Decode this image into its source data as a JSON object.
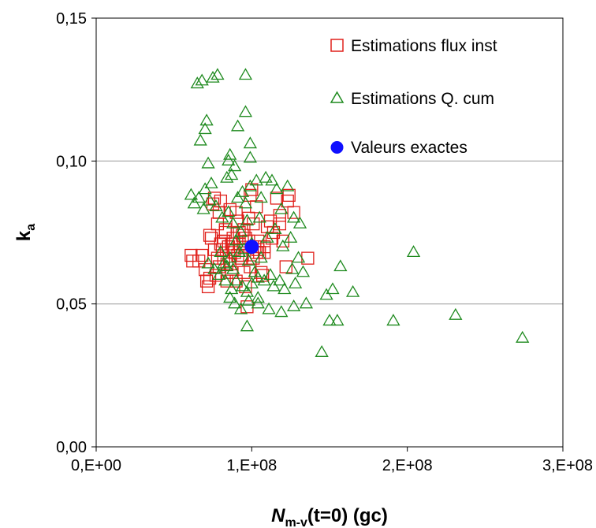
{
  "colors": {
    "series_flux": "#e0201b",
    "series_qcum": "#1e8a1e",
    "series_exact": "#1010ff",
    "gridline": "#a6a6a6",
    "axis": "#000000"
  },
  "chart_data": {
    "type": "scatter",
    "xlabel": {
      "main": "N",
      "sub": "m-v",
      "rest": "(t=0) (gc)"
    },
    "ylabel": {
      "main": "k",
      "sub": "a"
    },
    "xlim": [
      0,
      300000000
    ],
    "ylim": [
      0,
      0.15
    ],
    "x_ticks": [
      {
        "value": 0,
        "label": "0,E+00"
      },
      {
        "value": 100000000,
        "label": "1,E+08"
      },
      {
        "value": 200000000,
        "label": "2,E+08"
      },
      {
        "value": 300000000,
        "label": "3,E+08"
      }
    ],
    "y_ticks": [
      {
        "value": 0,
        "label": "0,00"
      },
      {
        "value": 0.05,
        "label": "0,05"
      },
      {
        "value": 0.1,
        "label": "0,10"
      },
      {
        "value": 0.15,
        "label": "0,15"
      }
    ],
    "grid": {
      "horizontal": true,
      "vertical": false
    },
    "legend_position": "top-right",
    "series": [
      {
        "name": "Estimations flux inst",
        "marker": "square-open",
        "x": [
          61000000,
          66000000,
          68000000,
          71000000,
          72000000,
          74000000,
          75000000,
          76000000,
          77000000,
          78000000,
          79000000,
          80000000,
          81000000,
          82000000,
          83000000,
          84000000,
          85000000,
          86000000,
          87000000,
          88000000,
          89000000,
          90000000,
          91000000,
          92000000,
          93000000,
          94000000,
          95000000,
          96000000,
          97000000,
          98000000,
          99000000,
          100000000,
          101000000,
          102000000,
          103000000,
          104000000,
          105000000,
          106000000,
          107000000,
          108000000,
          110000000,
          112000000,
          114000000,
          116000000,
          118000000,
          120000000,
          122000000,
          124000000,
          127000000,
          136000000,
          62000000,
          70000000,
          73000000,
          78000000,
          80000000,
          82000000,
          84000000,
          86000000,
          88000000,
          90000000,
          92000000,
          94000000,
          96000000,
          99000000,
          101000000,
          104000000,
          108000000,
          113000000,
          118000000,
          123000000,
          76000000,
          79000000,
          83000000,
          87000000,
          91000000,
          95000000,
          98000000,
          103000000,
          73000000,
          85000000
        ],
        "y": [
          0.067,
          0.065,
          0.067,
          0.058,
          0.056,
          0.073,
          0.085,
          0.087,
          0.06,
          0.078,
          0.063,
          0.071,
          0.069,
          0.066,
          0.075,
          0.058,
          0.07,
          0.064,
          0.061,
          0.073,
          0.068,
          0.082,
          0.079,
          0.071,
          0.066,
          0.074,
          0.061,
          0.056,
          0.049,
          0.072,
          0.088,
          0.09,
          0.066,
          0.07,
          0.084,
          0.069,
          0.068,
          0.061,
          0.06,
          0.07,
          0.077,
          0.079,
          0.075,
          0.087,
          0.078,
          0.072,
          0.063,
          0.088,
          0.082,
          0.066,
          0.065,
          0.062,
          0.059,
          0.066,
          0.086,
          0.072,
          0.064,
          0.083,
          0.069,
          0.058,
          0.075,
          0.067,
          0.073,
          0.063,
          0.078,
          0.072,
          0.068,
          0.073,
          0.081,
          0.086,
          0.069,
          0.082,
          0.076,
          0.071,
          0.067,
          0.076,
          0.08,
          0.068,
          0.074,
          0.07
        ]
      },
      {
        "name": "Estimations Q. cum",
        "marker": "triangle-open",
        "x": [
          65000000,
          68000000,
          71000000,
          75000000,
          78000000,
          96000000,
          67000000,
          70000000,
          72000000,
          66000000,
          96000000,
          91000000,
          99000000,
          86000000,
          99000000,
          70000000,
          74000000,
          84000000,
          85000000,
          87000000,
          89000000,
          91000000,
          94000000,
          96000000,
          99000000,
          103000000,
          106000000,
          109000000,
          113000000,
          116000000,
          119000000,
          123000000,
          127000000,
          131000000,
          61000000,
          63000000,
          69000000,
          73000000,
          77000000,
          81000000,
          85000000,
          88000000,
          90000000,
          93000000,
          97000000,
          100000000,
          105000000,
          110000000,
          115000000,
          120000000,
          125000000,
          130000000,
          80000000,
          82000000,
          84000000,
          86000000,
          88000000,
          92000000,
          95000000,
          98000000,
          102000000,
          106000000,
          112000000,
          118000000,
          126000000,
          133000000,
          87000000,
          90000000,
          94000000,
          97000000,
          100000000,
          104000000,
          108000000,
          114000000,
          121000000,
          128000000,
          135000000,
          86000000,
          89000000,
          93000000,
          98000000,
          104000000,
          111000000,
          119000000,
          127000000,
          97000000,
          104000000,
          145000000,
          148000000,
          150000000,
          152000000,
          155000000,
          157000000,
          165000000,
          191000000,
          204000000,
          231000000,
          274000000,
          72000000,
          76000000,
          79000000,
          83000000
        ],
        "y": [
          0.127,
          0.128,
          0.114,
          0.129,
          0.13,
          0.13,
          0.107,
          0.111,
          0.099,
          0.087,
          0.117,
          0.112,
          0.106,
          0.102,
          0.101,
          0.09,
          0.092,
          0.094,
          0.1,
          0.095,
          0.098,
          0.087,
          0.089,
          0.085,
          0.091,
          0.093,
          0.087,
          0.094,
          0.093,
          0.09,
          0.083,
          0.091,
          0.08,
          0.078,
          0.088,
          0.085,
          0.083,
          0.086,
          0.084,
          0.08,
          0.082,
          0.078,
          0.072,
          0.075,
          0.079,
          0.071,
          0.08,
          0.073,
          0.076,
          0.07,
          0.073,
          0.066,
          0.068,
          0.064,
          0.063,
          0.066,
          0.062,
          0.068,
          0.069,
          0.065,
          0.061,
          0.066,
          0.06,
          0.058,
          0.062,
          0.061,
          0.055,
          0.058,
          0.056,
          0.054,
          0.057,
          0.059,
          0.058,
          0.056,
          0.055,
          0.057,
          0.05,
          0.052,
          0.05,
          0.048,
          0.051,
          0.052,
          0.048,
          0.047,
          0.049,
          0.042,
          0.05,
          0.033,
          0.053,
          0.044,
          0.055,
          0.044,
          0.063,
          0.054,
          0.044,
          0.068,
          0.046,
          0.038,
          0.064,
          0.062,
          0.06,
          0.058
        ]
      },
      {
        "name": "Valeurs exactes",
        "marker": "circle-filled",
        "x": [
          100000000
        ],
        "y": [
          0.07
        ]
      }
    ]
  }
}
